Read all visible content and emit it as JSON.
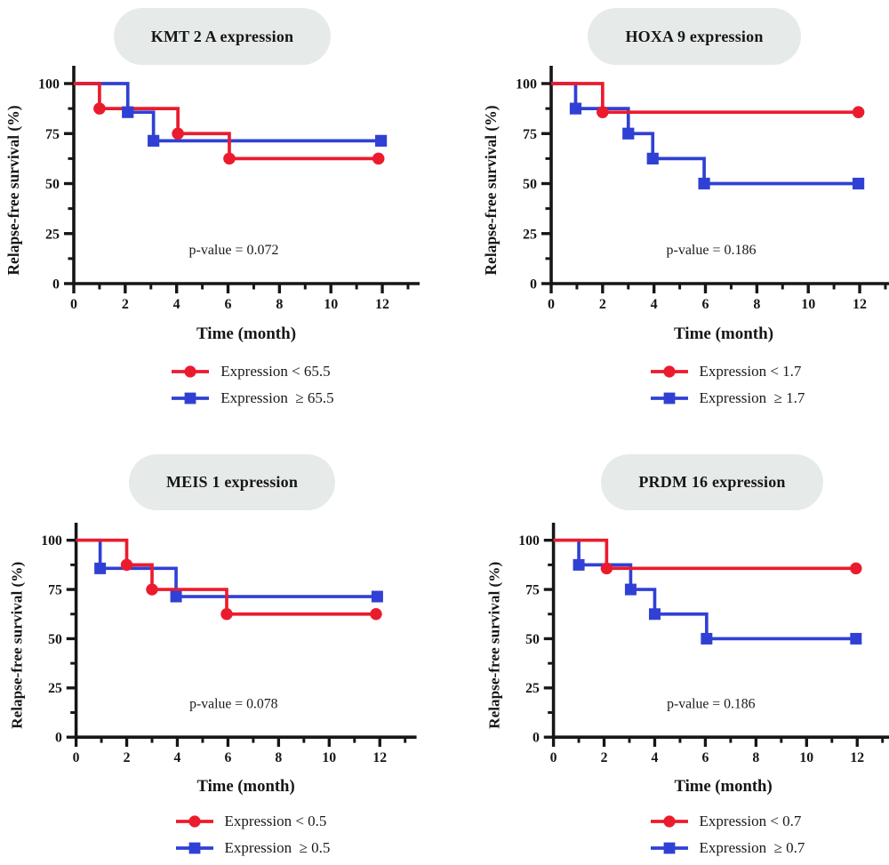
{
  "styles": {
    "background": "#ffffff",
    "red": "#eb1b2e",
    "blue": "#3040d4",
    "ink": "#161616",
    "pill_bg": "#e6eae8",
    "legend_text": "#1a1a1a"
  },
  "axes_common": {
    "xlabel": "Time (month)",
    "ylabel": "Relapse-free survival (%)",
    "x_ticks": [
      0,
      2,
      4,
      6,
      8,
      10,
      12
    ],
    "x_minor_ticks": [
      1,
      3,
      5,
      7,
      9,
      11,
      13
    ],
    "y_ticks": [
      0,
      25,
      50,
      75,
      100
    ],
    "y_minor_ticks": [
      12.5,
      37.5,
      62.5,
      87.5
    ],
    "xlim": [
      0,
      13.5
    ],
    "ylim": [
      0,
      111
    ],
    "grid": false,
    "legend_position": "below"
  },
  "chart_data": [
    {
      "type": "line",
      "title": "KMT 2 A expression",
      "p_value_label": "p-value = 0.072",
      "xlabel": "Time (month)",
      "ylabel": "Relapse-free survival (%)",
      "series": [
        {
          "name": "Expression ≥ 65.5",
          "color_key": "blue",
          "marker": "square",
          "steps": [
            [
              0,
              100
            ],
            [
              2.1,
              100
            ],
            [
              2.1,
              85.7
            ],
            [
              3.1,
              85.7
            ],
            [
              3.1,
              71.4
            ],
            [
              11.95,
              71.4
            ]
          ],
          "marker_points": [
            [
              2.1,
              85.7
            ],
            [
              3.1,
              71.4
            ],
            [
              11.95,
              71.4
            ]
          ]
        },
        {
          "name": "Expression < 65.5",
          "color_key": "red",
          "marker": "circle",
          "steps": [
            [
              0,
              100
            ],
            [
              1,
              100
            ],
            [
              1,
              87.5
            ],
            [
              4.05,
              87.5
            ],
            [
              4.05,
              75
            ],
            [
              6.05,
              75
            ],
            [
              6.05,
              62.5
            ],
            [
              11.85,
              62.5
            ]
          ],
          "marker_points": [
            [
              1,
              87.5
            ],
            [
              4.05,
              75
            ],
            [
              6.05,
              62.5
            ],
            [
              11.85,
              62.5
            ]
          ]
        }
      ],
      "legend": [
        {
          "label": "Expression < 65.5",
          "color_key": "red",
          "marker": "circle"
        },
        {
          "label": "Expression  ≥ 65.5",
          "color_key": "blue",
          "marker": "square"
        }
      ]
    },
    {
      "type": "line",
      "title": "HOXA 9 expression",
      "p_value_label": "p-value = 0.186",
      "xlabel": "Time (month)",
      "ylabel": "Relapse-free survival (%)",
      "series": [
        {
          "name": "Expression ≥ 1.7",
          "color_key": "blue",
          "marker": "square",
          "steps": [
            [
              0,
              100
            ],
            [
              0.95,
              100
            ],
            [
              0.95,
              87.5
            ],
            [
              3,
              87.5
            ],
            [
              3,
              75
            ],
            [
              3.95,
              75
            ],
            [
              3.95,
              62.5
            ],
            [
              5.95,
              62.5
            ],
            [
              5.95,
              50
            ],
            [
              11.95,
              50
            ]
          ],
          "marker_points": [
            [
              0.95,
              87.5
            ],
            [
              3,
              75
            ],
            [
              3.95,
              62.5
            ],
            [
              5.95,
              50
            ],
            [
              11.95,
              50
            ]
          ]
        },
        {
          "name": "Expression < 1.7",
          "color_key": "red",
          "marker": "circle",
          "steps": [
            [
              0,
              100
            ],
            [
              2,
              100
            ],
            [
              2,
              85.7
            ],
            [
              11.95,
              85.7
            ]
          ],
          "marker_points": [
            [
              2,
              85.7
            ],
            [
              11.95,
              85.7
            ]
          ]
        }
      ],
      "legend": [
        {
          "label": "Expression < 1.7",
          "color_key": "red",
          "marker": "circle"
        },
        {
          "label": "Expression  ≥ 1.7",
          "color_key": "blue",
          "marker": "square"
        }
      ]
    },
    {
      "type": "line",
      "title": "MEIS 1 expression",
      "p_value_label": "p-value = 0.078",
      "xlabel": "Time (month)",
      "ylabel": "Relapse-free survival (%)",
      "series": [
        {
          "name": "Expression ≥ 0.5",
          "color_key": "blue",
          "marker": "square",
          "steps": [
            [
              0,
              100
            ],
            [
              0.95,
              100
            ],
            [
              0.95,
              85.7
            ],
            [
              3.95,
              85.7
            ],
            [
              3.95,
              71.4
            ],
            [
              11.9,
              71.4
            ]
          ],
          "marker_points": [
            [
              0.95,
              85.7
            ],
            [
              3.95,
              71.4
            ],
            [
              11.9,
              71.4
            ]
          ]
        },
        {
          "name": "Expression < 0.5",
          "color_key": "red",
          "marker": "circle",
          "steps": [
            [
              0,
              100
            ],
            [
              2,
              100
            ],
            [
              2,
              87.5
            ],
            [
              3,
              87.5
            ],
            [
              3,
              75
            ],
            [
              5.95,
              75
            ],
            [
              5.95,
              62.5
            ],
            [
              11.85,
              62.5
            ]
          ],
          "marker_points": [
            [
              2,
              87.5
            ],
            [
              3,
              75
            ],
            [
              5.95,
              62.5
            ],
            [
              11.85,
              62.5
            ]
          ]
        }
      ],
      "legend": [
        {
          "label": "Expression < 0.5",
          "color_key": "red",
          "marker": "circle"
        },
        {
          "label": "Expression  ≥ 0.5",
          "color_key": "blue",
          "marker": "square"
        }
      ]
    },
    {
      "type": "line",
      "title": "PRDM 16 expression",
      "p_value_label": "p-value = 0.186",
      "xlabel": "Time (month)",
      "ylabel": "Relapse-free survival (%)",
      "series": [
        {
          "name": "Expression ≥ 0.7",
          "color_key": "blue",
          "marker": "square",
          "steps": [
            [
              0,
              100
            ],
            [
              1,
              100
            ],
            [
              1,
              87.5
            ],
            [
              3.05,
              87.5
            ],
            [
              3.05,
              75
            ],
            [
              4,
              75
            ],
            [
              4,
              62.5
            ],
            [
              6.05,
              62.5
            ],
            [
              6.05,
              50
            ],
            [
              11.95,
              50
            ]
          ],
          "marker_points": [
            [
              1,
              87.5
            ],
            [
              3.05,
              75
            ],
            [
              4,
              62.5
            ],
            [
              6.05,
              50
            ],
            [
              11.95,
              50
            ]
          ]
        },
        {
          "name": "Expression < 0.7",
          "color_key": "red",
          "marker": "circle",
          "steps": [
            [
              0,
              100
            ],
            [
              2.1,
              100
            ],
            [
              2.1,
              85.7
            ],
            [
              11.95,
              85.7
            ]
          ],
          "marker_points": [
            [
              2.1,
              85.7
            ],
            [
              11.95,
              85.7
            ]
          ]
        }
      ],
      "legend": [
        {
          "label": "Expression < 0.7",
          "color_key": "red",
          "marker": "circle"
        },
        {
          "label": "Expression  ≥ 0.7",
          "color_key": "blue",
          "marker": "square"
        }
      ]
    }
  ]
}
